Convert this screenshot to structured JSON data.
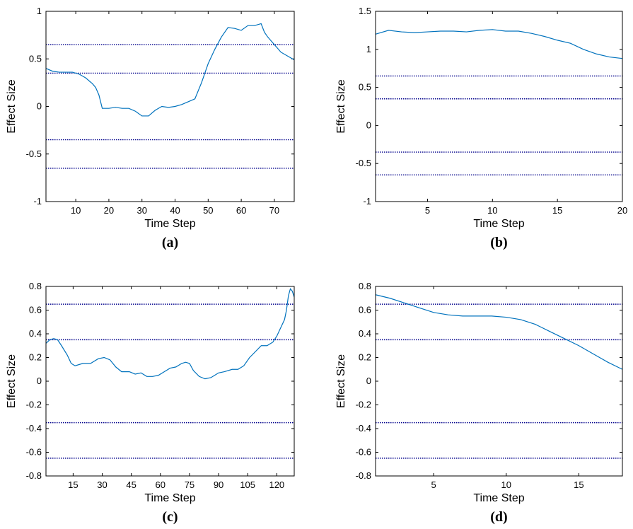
{
  "colors": {
    "series": "#0072BD",
    "threshold": "#00008B",
    "axis": "#000000"
  },
  "chart_data": [
    {
      "type": "line",
      "panel": "(a)",
      "xlabel": "Time Step",
      "ylabel": "Effect Size",
      "xlim": [
        1,
        76
      ],
      "ylim": [
        -1,
        1
      ],
      "xticks": [
        10,
        20,
        30,
        40,
        50,
        60,
        70
      ],
      "yticks": [
        -1,
        -0.5,
        0,
        0.5,
        1
      ],
      "ytick_labels": [
        "-1",
        "-0.5",
        "0",
        "0.5",
        "1"
      ],
      "thresholds": [
        0.65,
        0.35,
        -0.35,
        -0.65
      ],
      "grid": false,
      "series": [
        {
          "x": [
            1,
            3,
            5,
            7,
            9,
            11,
            13,
            15,
            16,
            17,
            18,
            20,
            22,
            24,
            26,
            28,
            30,
            32,
            34,
            36,
            38,
            40,
            42,
            44,
            46,
            48,
            50,
            52,
            54,
            56,
            58,
            60,
            62,
            64,
            66,
            67,
            68,
            70,
            72,
            74,
            76
          ],
          "y": [
            0.4,
            0.37,
            0.36,
            0.36,
            0.36,
            0.34,
            0.3,
            0.24,
            0.2,
            0.12,
            -0.02,
            -0.02,
            -0.01,
            -0.02,
            -0.02,
            -0.05,
            -0.1,
            -0.1,
            -0.04,
            0.0,
            -0.01,
            0.0,
            0.02,
            0.05,
            0.08,
            0.25,
            0.45,
            0.6,
            0.73,
            0.83,
            0.82,
            0.8,
            0.85,
            0.85,
            0.87,
            0.78,
            0.73,
            0.65,
            0.57,
            0.53,
            0.49
          ]
        }
      ]
    },
    {
      "type": "line",
      "panel": "(b)",
      "xlabel": "Time Step",
      "ylabel": "Effect Size",
      "xlim": [
        1,
        20
      ],
      "ylim": [
        -1,
        1.5
      ],
      "xticks": [
        5,
        10,
        15,
        20
      ],
      "yticks": [
        -1,
        -0.5,
        0,
        0.5,
        1,
        1.5
      ],
      "ytick_labels": [
        "-1",
        "-0.5",
        "0",
        "0.5",
        "1",
        "1.5"
      ],
      "thresholds": [
        0.65,
        0.35,
        -0.35,
        -0.65
      ],
      "grid": false,
      "series": [
        {
          "x": [
            1,
            2,
            3,
            4,
            5,
            6,
            7,
            8,
            9,
            10,
            11,
            12,
            13,
            14,
            15,
            16,
            17,
            18,
            19,
            20
          ],
          "y": [
            1.2,
            1.25,
            1.23,
            1.22,
            1.23,
            1.24,
            1.24,
            1.23,
            1.25,
            1.26,
            1.24,
            1.24,
            1.21,
            1.17,
            1.12,
            1.08,
            1.0,
            0.94,
            0.9,
            0.88
          ]
        }
      ]
    },
    {
      "type": "line",
      "panel": "(c)",
      "xlabel": "Time Step",
      "ylabel": "Effect Size",
      "xlim": [
        1,
        129
      ],
      "ylim": [
        -0.8,
        0.8
      ],
      "xticks": [
        15,
        30,
        45,
        60,
        75,
        90,
        105,
        120
      ],
      "yticks": [
        -0.8,
        -0.6,
        -0.4,
        -0.2,
        0,
        0.2,
        0.4,
        0.6,
        0.8
      ],
      "ytick_labels": [
        "-0.8",
        "-0.6",
        "-0.4",
        "-0.2",
        "0",
        "0.2",
        "0.4",
        "0.6",
        "0.8"
      ],
      "thresholds": [
        0.65,
        0.35,
        -0.35,
        -0.65
      ],
      "grid": false,
      "series": [
        {
          "x": [
            1,
            3,
            5,
            7,
            9,
            12,
            14,
            16,
            20,
            24,
            28,
            31,
            34,
            37,
            40,
            44,
            47,
            50,
            53,
            56,
            59,
            62,
            65,
            68,
            71,
            73,
            75,
            77,
            80,
            83,
            86,
            88,
            90,
            93,
            97,
            100,
            103,
            106,
            109,
            112,
            115,
            118,
            120,
            122,
            124,
            125,
            126,
            127,
            128,
            129
          ],
          "y": [
            0.32,
            0.35,
            0.36,
            0.35,
            0.3,
            0.22,
            0.15,
            0.13,
            0.15,
            0.15,
            0.19,
            0.2,
            0.18,
            0.12,
            0.08,
            0.08,
            0.06,
            0.07,
            0.04,
            0.04,
            0.05,
            0.08,
            0.11,
            0.12,
            0.15,
            0.16,
            0.15,
            0.09,
            0.04,
            0.02,
            0.03,
            0.05,
            0.07,
            0.08,
            0.1,
            0.1,
            0.13,
            0.2,
            0.25,
            0.3,
            0.3,
            0.33,
            0.38,
            0.45,
            0.52,
            0.6,
            0.72,
            0.78,
            0.76,
            0.71
          ]
        }
      ]
    },
    {
      "type": "line",
      "panel": "(d)",
      "xlabel": "Time Step",
      "ylabel": "Effect Size",
      "xlim": [
        1,
        18
      ],
      "ylim": [
        -0.8,
        0.8
      ],
      "xticks": [
        5,
        10,
        15
      ],
      "yticks": [
        -0.8,
        -0.6,
        -0.4,
        -0.2,
        0,
        0.2,
        0.4,
        0.6,
        0.8
      ],
      "ytick_labels": [
        "-0.8",
        "-0.6",
        "-0.4",
        "-0.2",
        "0",
        "0.2",
        "0.4",
        "0.6",
        "0.8"
      ],
      "thresholds": [
        0.65,
        0.35,
        -0.35,
        -0.65
      ],
      "grid": false,
      "series": [
        {
          "x": [
            1,
            2,
            3,
            4,
            5,
            6,
            7,
            8,
            9,
            10,
            11,
            12,
            13,
            14,
            15,
            16,
            17,
            18
          ],
          "y": [
            0.73,
            0.7,
            0.66,
            0.62,
            0.58,
            0.56,
            0.55,
            0.55,
            0.55,
            0.54,
            0.52,
            0.48,
            0.42,
            0.36,
            0.3,
            0.23,
            0.16,
            0.1
          ]
        }
      ]
    }
  ]
}
